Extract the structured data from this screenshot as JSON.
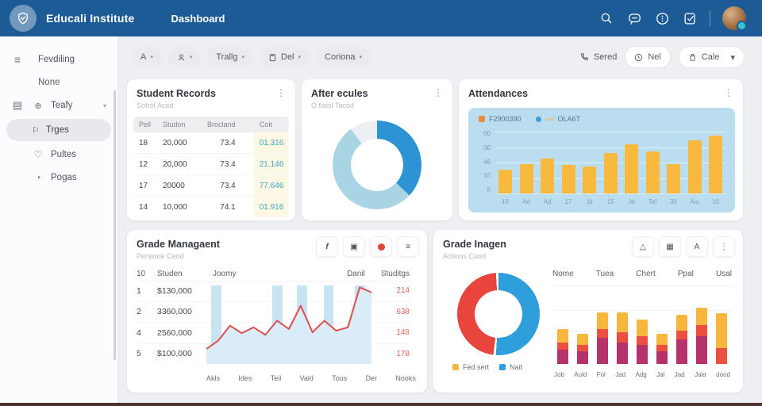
{
  "topbar": {
    "brand": "Educali Institute",
    "nav": "Dashboard",
    "icons": [
      "search-icon",
      "chat-icon",
      "info-circle-icon",
      "note-check-icon",
      "avatar"
    ]
  },
  "sidebar": {
    "items": [
      {
        "label": "Fevdiling",
        "icon": "hamburger-icon"
      },
      {
        "label": "None"
      },
      {
        "label": "Teafy",
        "icon": "globe-icon",
        "leading_icon": "document-icon",
        "chevron": true
      },
      {
        "label": "Trges",
        "icon": "flag-icon",
        "active": true
      },
      {
        "label": "Pultes",
        "icon": "heart-icon"
      },
      {
        "label": "Pogas",
        "icon": "clock-icon"
      }
    ]
  },
  "toolbar": {
    "filter_a": "A",
    "filter_trallg": "Trallg",
    "filter_del": "Del",
    "filter_coriona": "Coriona",
    "sered": "Sered",
    "nel": "Nel",
    "cale": "Cale"
  },
  "cards": {
    "student_records": {
      "title": "Student Records",
      "subtitle": "Sotrot Aced",
      "headers": [
        "Pell",
        "Studon",
        "Brocland",
        "Coit"
      ],
      "rows": [
        [
          "18",
          "20,000",
          "73.4",
          "01.316"
        ],
        [
          "12",
          "20,000",
          "73.4",
          "21.146"
        ],
        [
          "17",
          "20000",
          "73.4",
          "77.646"
        ],
        [
          "14",
          "10,000",
          "74.1",
          "01.916"
        ]
      ],
      "value_color": "#40a7bd",
      "value_col_bg": "#fdf7e6"
    },
    "after_ecules": {
      "title": "After ecules",
      "subtitle": "O fiaisl Tacod",
      "chart": {
        "type": "pie",
        "segments": [
          {
            "name": "primary",
            "color": "#2d93d4",
            "value": 37
          },
          {
            "name": "secondary",
            "color": "#a9d4e4",
            "value": 53
          },
          {
            "name": "rest",
            "color": "#edf0f2",
            "value": 10
          }
        ]
      }
    },
    "attendances": {
      "title": "Attendances",
      "legend": [
        {
          "label": "F2900390",
          "color": "#ef8b3a",
          "swatch": "square"
        },
        {
          "label": "OLA6T",
          "dot": "#3d9fd6",
          "dash": "#d9c79a",
          "swatch": "dot-dash"
        }
      ],
      "chart": {
        "type": "bar",
        "values": [
          38,
          47,
          57,
          46,
          44,
          66,
          80,
          68,
          47,
          86,
          94
        ],
        "x_labels": [
          "16",
          "Ad",
          "Ad",
          "17",
          "Jd",
          "15",
          "Jd",
          "Tel",
          "30",
          "Alu",
          "10"
        ],
        "y_ticks": [
          "00",
          "00",
          "46",
          "10",
          "6"
        ],
        "bar_color": "#f7b93e",
        "panel_bg": "#badef0",
        "ylim": [
          0,
          100
        ]
      }
    },
    "grade_management": {
      "title": "Grade Managaent",
      "subtitle": "Persione Ceod",
      "actions": [
        "facebook-icon",
        "copy-icon",
        "record-dot",
        "menu-lines-icon"
      ],
      "header_left": [
        "10",
        "Studen",
        "Joomy"
      ],
      "header_right": [
        "Danil",
        "Studitgs"
      ],
      "rows": [
        {
          "num": "1",
          "amount": "$130,000",
          "value": "214"
        },
        {
          "num": "2",
          "amount": "3360,000",
          "value": "638"
        },
        {
          "num": "4",
          "amount": "2560,000",
          "value": "148"
        },
        {
          "num": "5",
          "amount": "$100,000",
          "value": "178"
        }
      ],
      "chart": {
        "type": "area",
        "values": [
          18,
          28,
          46,
          37,
          44,
          35,
          52,
          42,
          70,
          38,
          52,
          40,
          44,
          92,
          86
        ],
        "stripes": [
          3,
          40,
          55,
          71,
          90
        ],
        "line_color": "#dd4f4f",
        "area_color": "#d9ecf7",
        "stripe_color": "#bedff0",
        "ylim": [
          0,
          100
        ],
        "x_labels": [
          "Akls",
          "Ides",
          "Teil",
          "Vald",
          "Tous",
          "Der",
          "Nooks"
        ]
      }
    },
    "grade_imagen": {
      "title": "Grade Inagen",
      "subtitle": "Acbous Cood",
      "actions": [
        "triangle-icon",
        "calendar-icon",
        "person-icon",
        "kebab-icon"
      ],
      "columns": [
        "Nome",
        "Tuea",
        "Chert",
        "Ppal",
        "Usal"
      ],
      "donut": {
        "type": "pie",
        "segments": [
          {
            "name": "blue",
            "color": "#2f9fdb",
            "value": 51
          },
          {
            "name": "gap1",
            "color": "#ffffff",
            "value": 1
          },
          {
            "name": "red",
            "color": "#e8463c",
            "value": 47
          },
          {
            "name": "gap2",
            "color": "#ffffff",
            "value": 1
          }
        ]
      },
      "legend": [
        {
          "label": "Fed sert",
          "color": "#f6b73c"
        },
        {
          "label": "Nait",
          "color": "#2f9fdb"
        }
      ],
      "stacked": {
        "type": "stacked-bar",
        "colors": [
          "#b5326b",
          "#ea4f3f",
          "#f6b73c"
        ],
        "bars": [
          [
            20,
            10,
            18
          ],
          [
            18,
            8,
            16
          ],
          [
            36,
            12,
            24
          ],
          [
            30,
            14,
            28
          ],
          [
            26,
            12,
            24
          ],
          [
            18,
            8,
            16
          ],
          [
            34,
            12,
            22
          ],
          [
            38,
            16,
            24
          ],
          [
            0,
            22,
            48
          ]
        ],
        "x_labels": [
          "Job",
          "Auld",
          "Fol",
          "Jad",
          "Adg",
          "Jal",
          "Jad",
          "Jala",
          "dood"
        ],
        "ylim": [
          0,
          100
        ]
      }
    }
  },
  "colors": {
    "topbar": "#1d5b97",
    "main_bg": "#edeff2",
    "accent_teal": "#40a7bd",
    "accent_red": "#dd4f4f",
    "bar_orange": "#f7b93e"
  }
}
